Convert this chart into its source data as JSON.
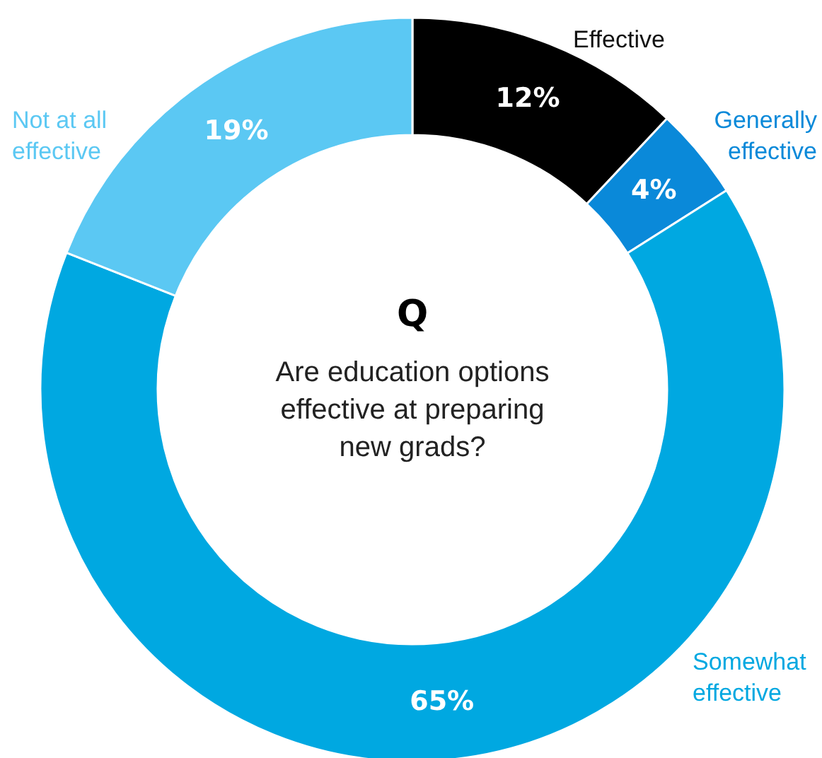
{
  "chart_data": {
    "type": "donut",
    "title": "Q",
    "subtitle": "Are education options\neffective at preparing\nnew grads?",
    "categories": [
      "Effective",
      "Generally\neffective",
      "Somewhat\neffective",
      "Not at all\neffective"
    ],
    "values": [
      12,
      4,
      65,
      19
    ],
    "colors": [
      "#000000",
      "#0a89d9",
      "#00a8e1",
      "#5bc8f3"
    ],
    "value_labels": [
      "12%",
      "4%",
      "65%",
      "19%"
    ]
  }
}
